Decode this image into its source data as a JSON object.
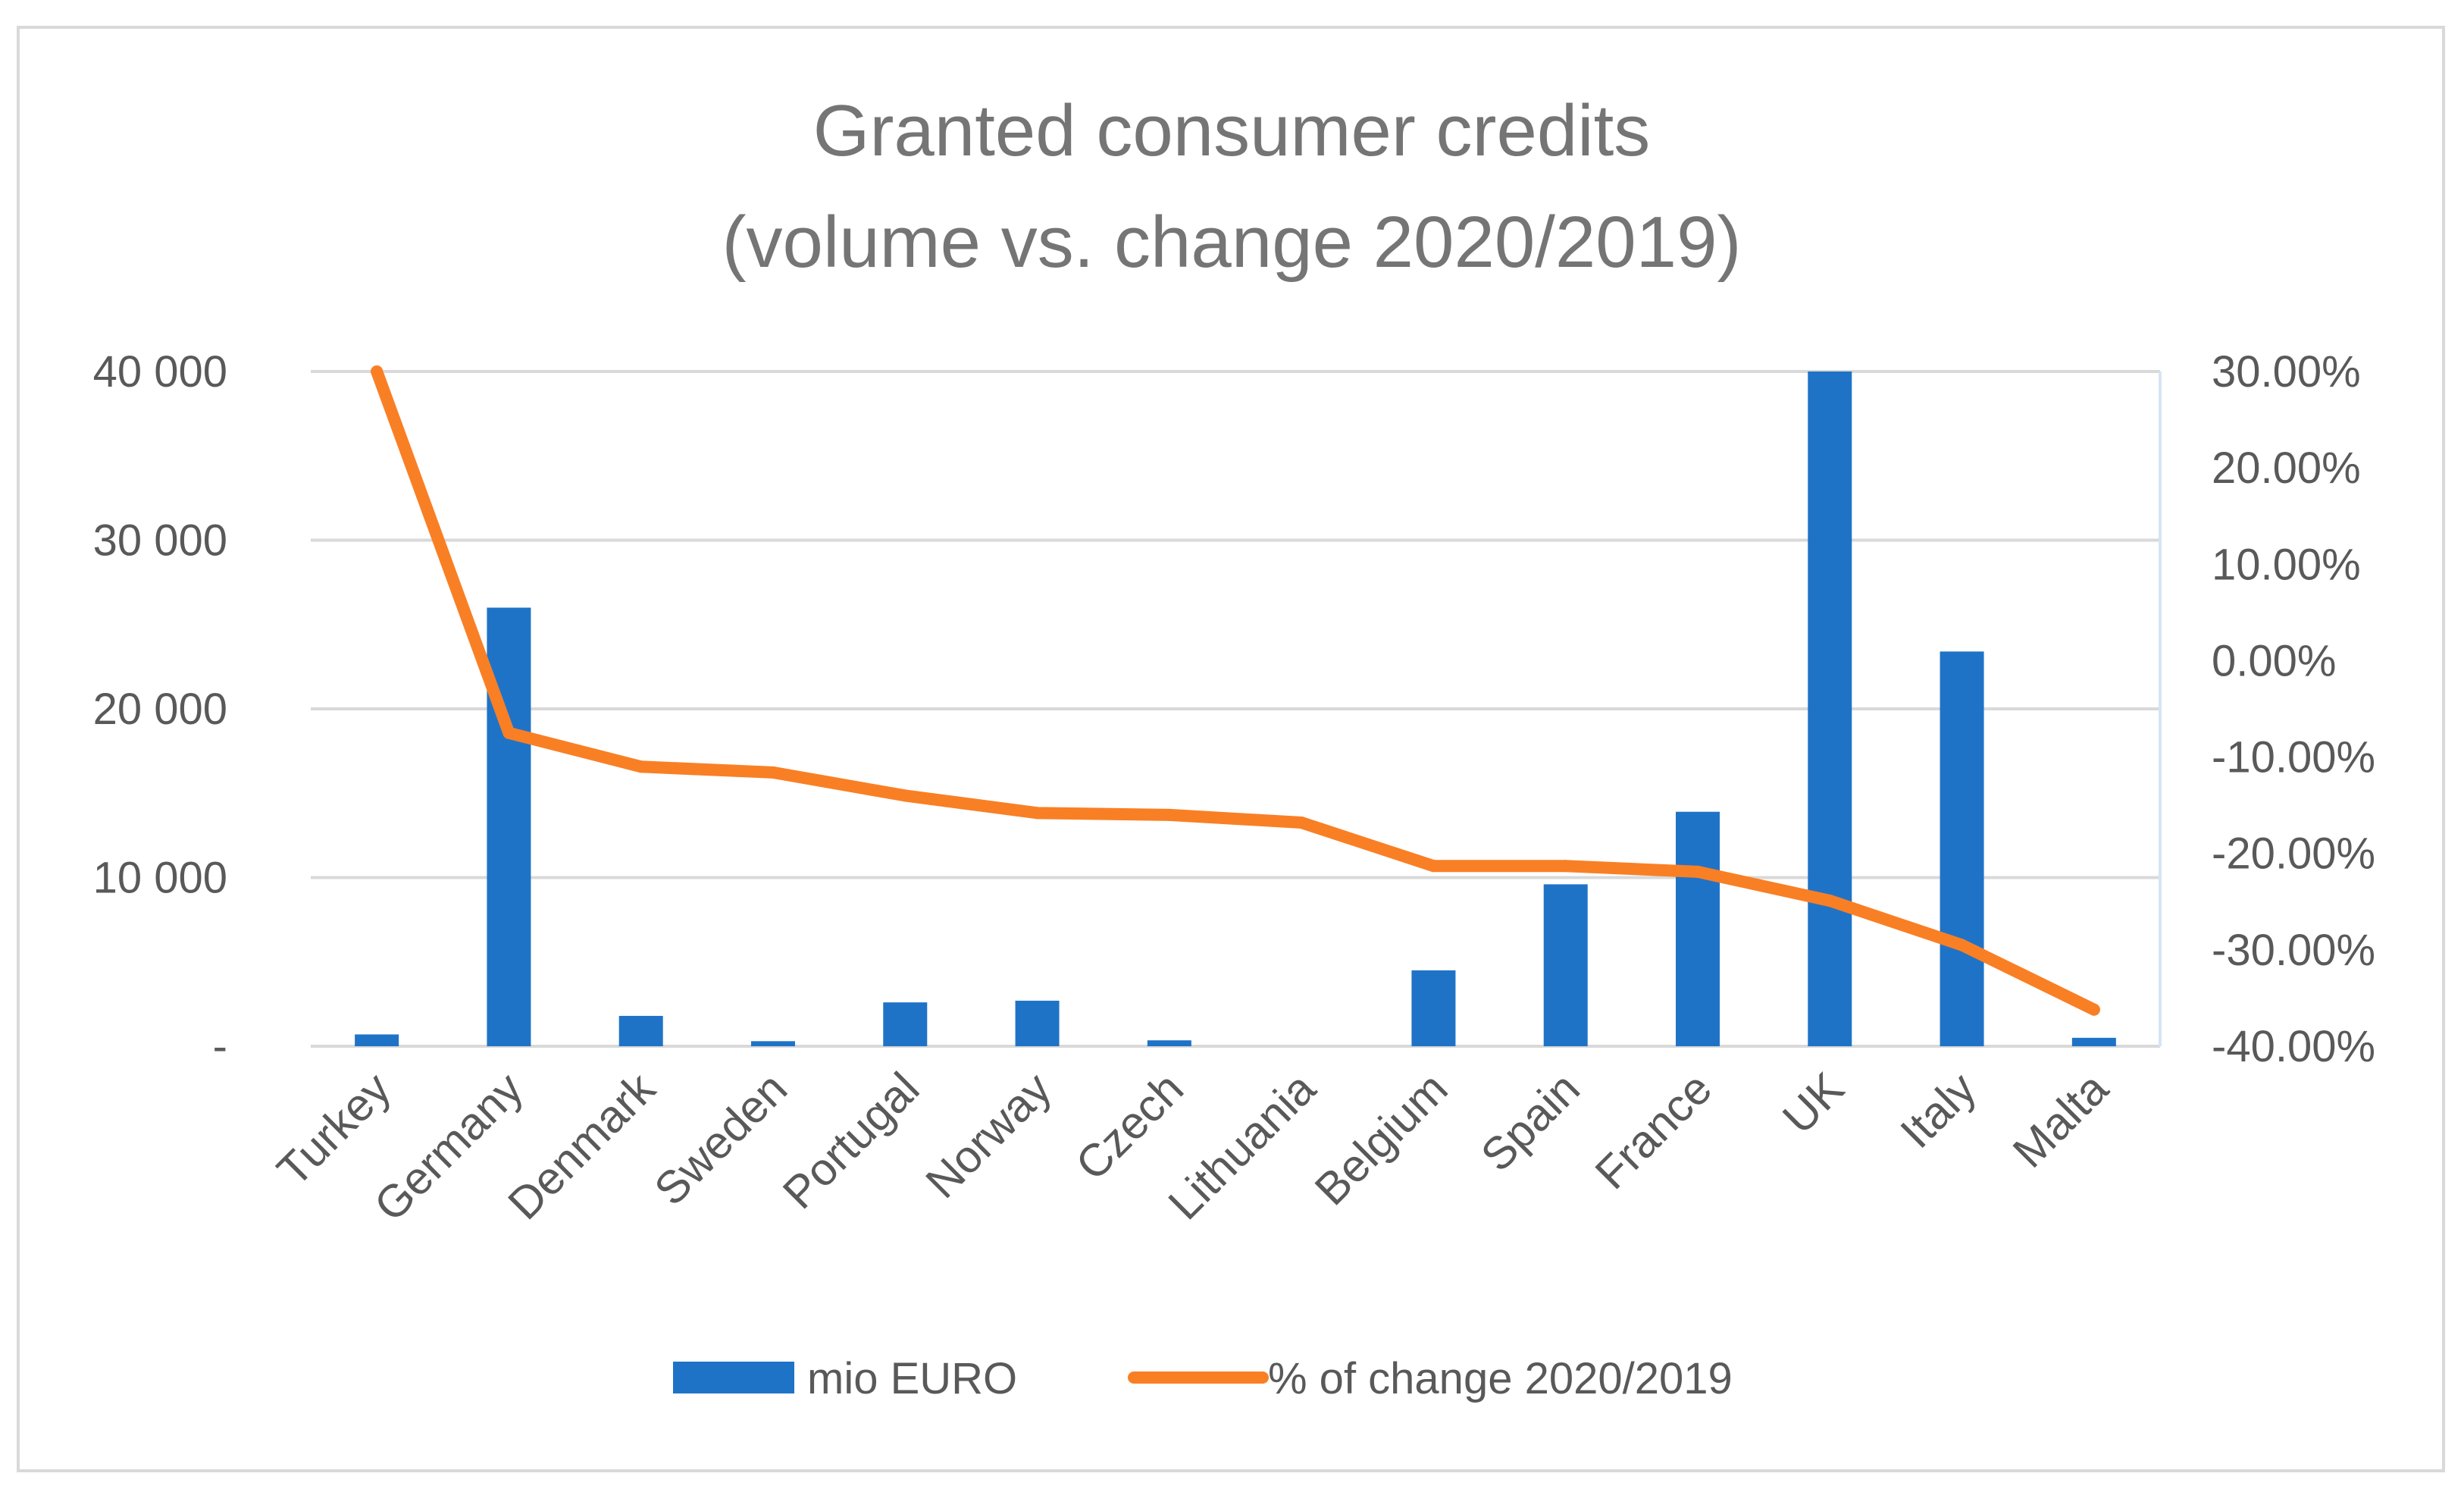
{
  "chart_data": {
    "type": "bar",
    "title_lines": [
      "Granted consumer credits",
      "(volume vs. change 2020/2019)"
    ],
    "categories": [
      "Turkey",
      "Germany",
      "Denmark",
      "Sweden",
      "Portugal",
      "Norway",
      "Czech",
      "Lithuania",
      "Belgium",
      "Spain",
      "France",
      "UK",
      "Italy",
      "Malta"
    ],
    "series": [
      {
        "name": "mio EURO",
        "type": "bar",
        "axis": "left",
        "color": "#1f73c7",
        "values": [
          700,
          26000,
          1800,
          300,
          2600,
          2700,
          350,
          0,
          4500,
          9600,
          13900,
          40000,
          23400,
          500
        ]
      },
      {
        "name": "% of change 2020/2019",
        "type": "line",
        "axis": "right",
        "color": "#f97f25",
        "values": [
          31.0,
          -7.5,
          -11.0,
          -11.6,
          -14.0,
          -15.8,
          -16.0,
          -16.8,
          -21.3,
          -21.3,
          -21.9,
          -24.9,
          -29.5,
          -36.2
        ]
      }
    ],
    "y_left": {
      "min": 0,
      "max": 40000,
      "ticks": [
        0,
        10000,
        20000,
        30000,
        40000
      ],
      "tick_labels": [
        "-",
        "10 000",
        "20 000",
        "30 000",
        "40 000"
      ]
    },
    "y_right": {
      "min": -40,
      "max": 30,
      "ticks": [
        30,
        20,
        10,
        0,
        -10,
        -20,
        -30,
        -40
      ],
      "tick_labels": [
        "30.00%",
        "20.00%",
        "10.00%",
        "0.00%",
        "-10.00%",
        "-20.00%",
        "-30.00%",
        "-40.00%"
      ]
    },
    "grid": true,
    "legend_position": "bottom"
  }
}
